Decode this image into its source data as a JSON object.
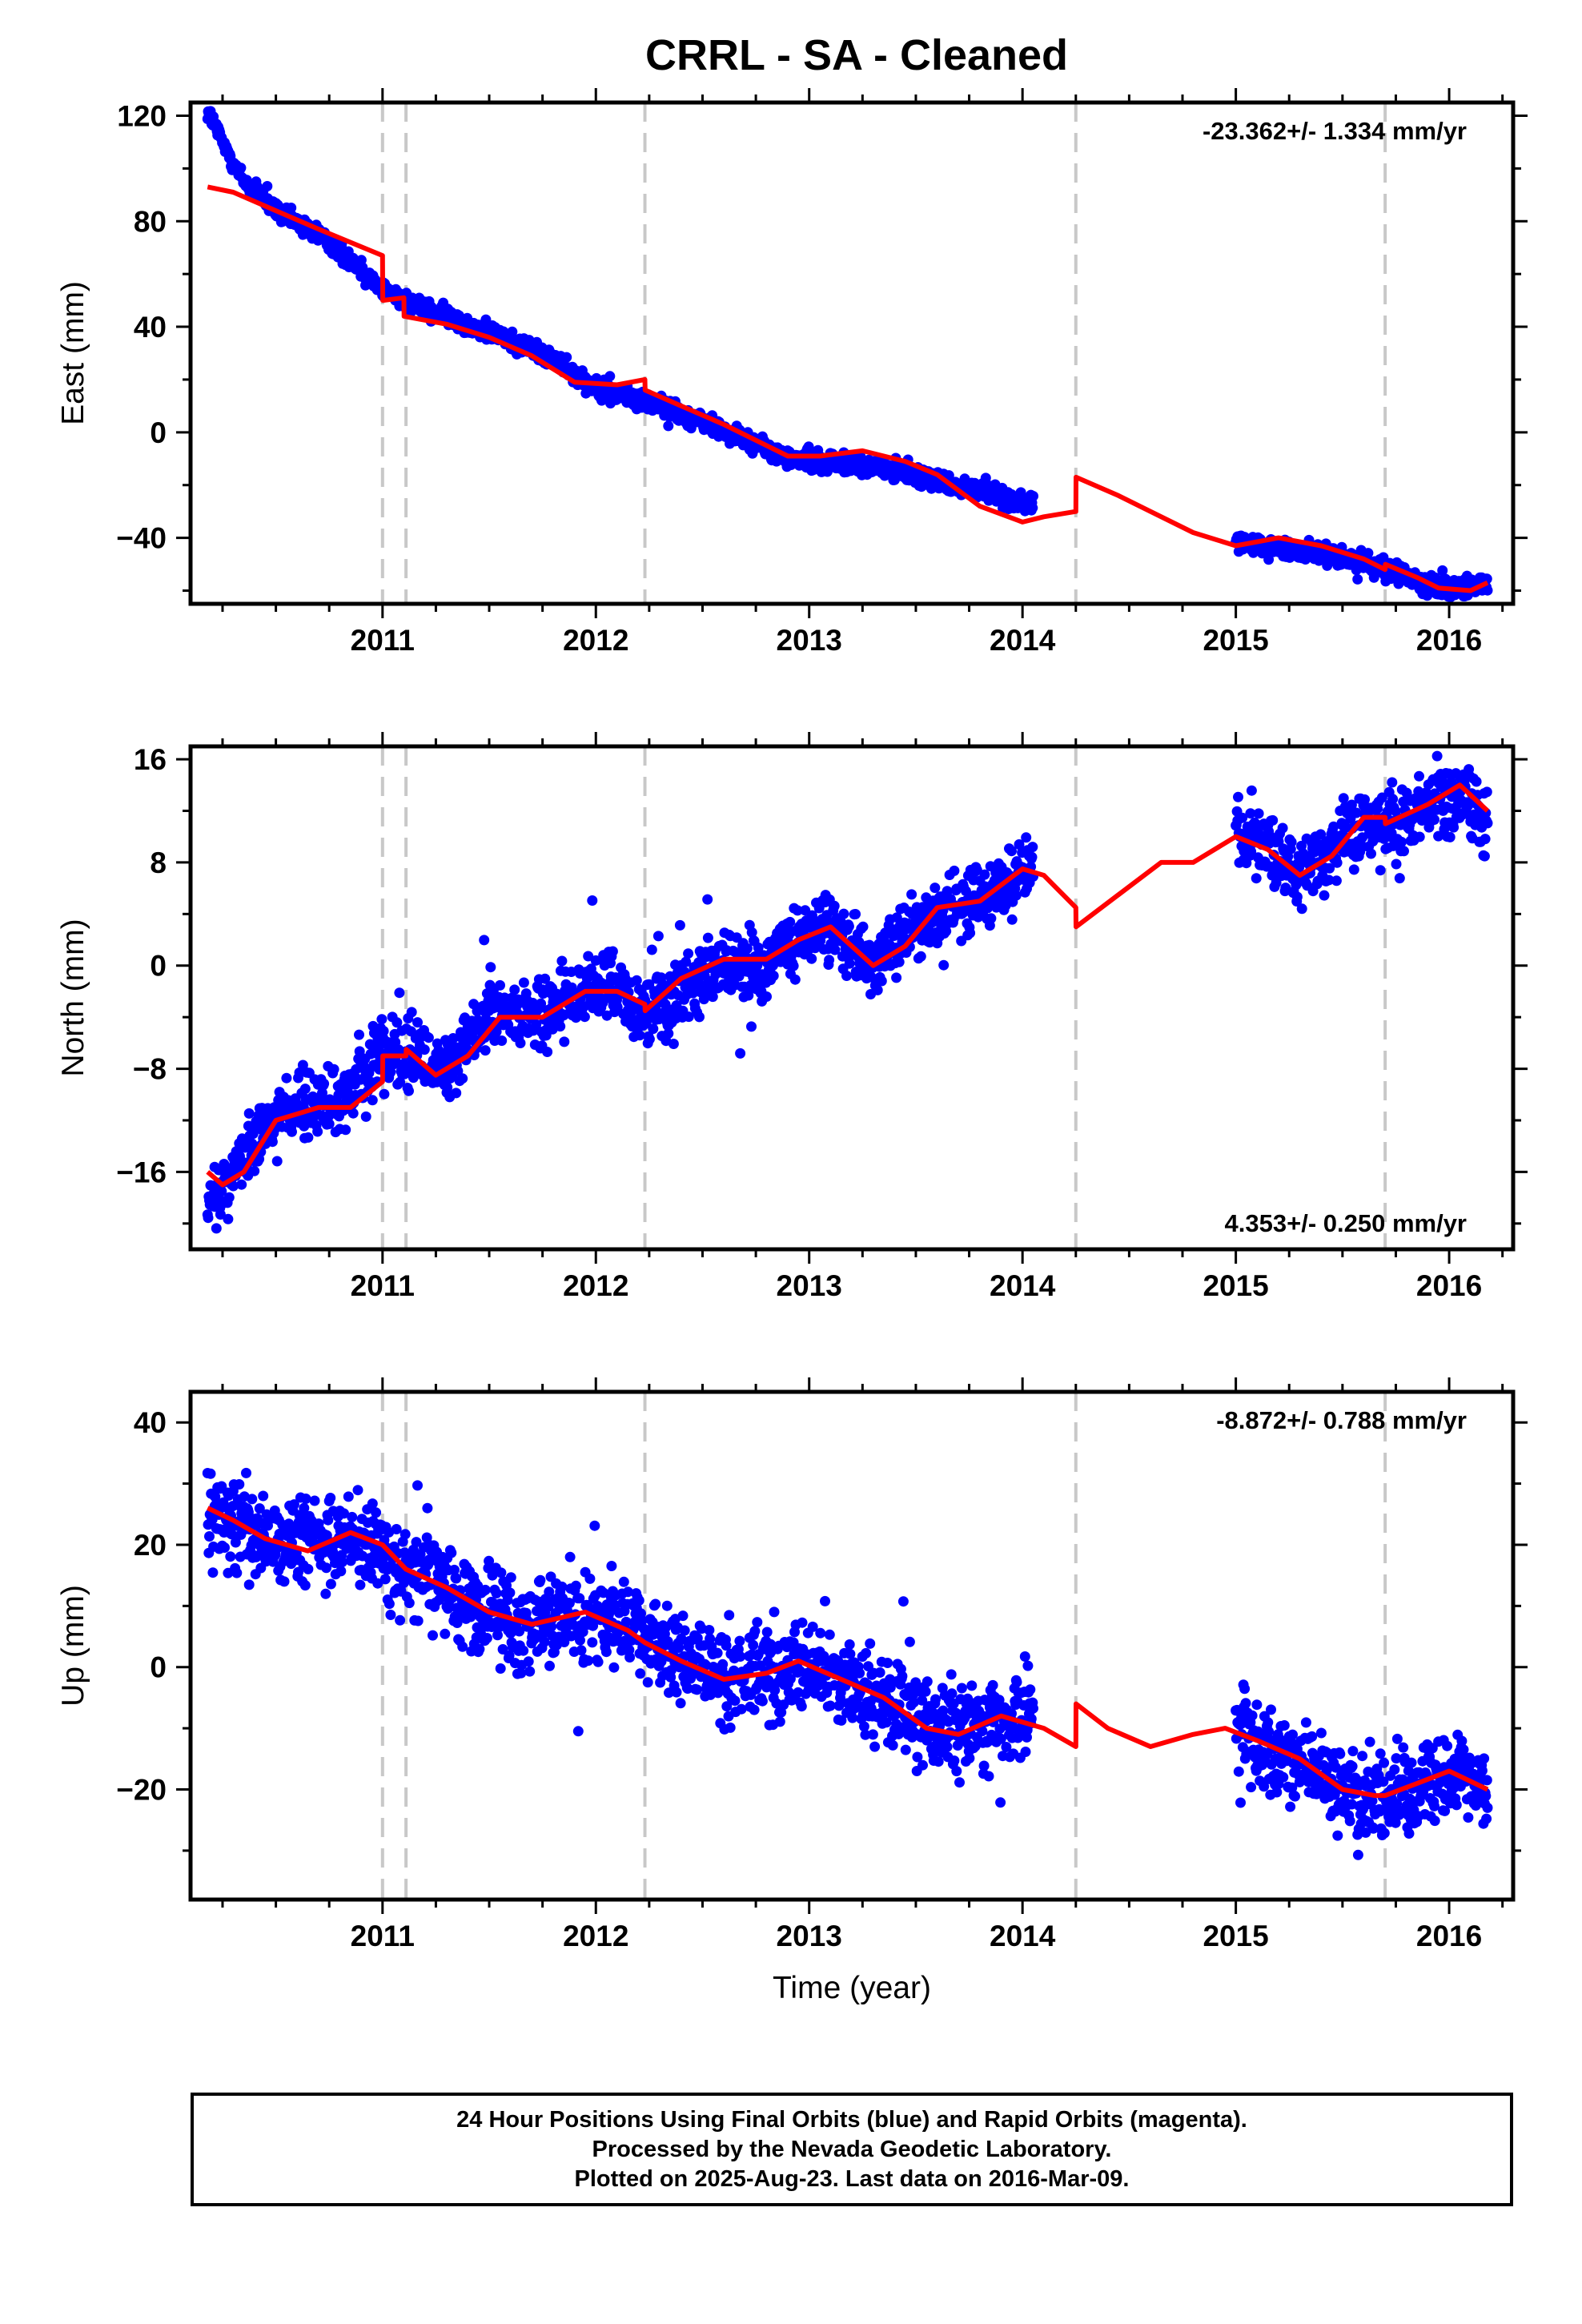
{
  "title": "CRRL  - SA - Cleaned",
  "colors": {
    "data_points": "#0000ff",
    "model_line": "#ff0000",
    "offset_lines": "#c8c8c8",
    "axes": "#000000"
  },
  "xlabel": "Time (year)",
  "footer": {
    "line1": "24 Hour Positions Using Final Orbits (blue) and Rapid Orbits (magenta).",
    "line2": "Processed by the Nevada Geodetic Laboratory.",
    "line3": "Plotted on 2025-Aug-23. Last data on 2016-Mar-09."
  },
  "chart_data": [
    {
      "type": "scatter",
      "panel": "east",
      "ylabel": "East (mm)",
      "rate": "-23.362+/- 1.334 mm/yr",
      "rate_position": "top-right",
      "xlim": [
        2010.1,
        2016.3
      ],
      "ylim": [
        -65,
        125
      ],
      "xticks": [
        2011,
        2012,
        2013,
        2014,
        2015,
        2016
      ],
      "yticks": [
        120,
        80,
        40,
        0,
        -40
      ],
      "offset_lines_x": [
        2011.0,
        2011.11,
        2012.23,
        2014.25,
        2015.7
      ],
      "data_segments": [
        {
          "x": [
            2010.18,
            2010.25,
            2010.35,
            2010.5,
            2010.7,
            2010.9,
            2011.0,
            2011.2,
            2011.5,
            2011.8,
            2012.0,
            2012.3,
            2012.6,
            2012.9,
            2013.2,
            2013.5,
            2013.8,
            2014.05
          ],
          "y": [
            122,
            110,
            95,
            84,
            75,
            62,
            54,
            47,
            38,
            28,
            17,
            10,
            1,
            -10,
            -12,
            -16,
            -22,
            -28
          ],
          "spread": 2.5
        },
        {
          "x": [
            2015.0,
            2015.2,
            2015.4,
            2015.6,
            2015.75,
            2015.9,
            2016.1,
            2016.18
          ],
          "y": [
            -42,
            -44,
            -46,
            -49,
            -53,
            -58,
            -59,
            -58
          ],
          "spread": 2.5
        }
      ],
      "model": {
        "x": [
          2010.18,
          2010.3,
          2010.5,
          2010.7,
          2010.85,
          2011.0,
          2011.001,
          2011.1,
          2011.101,
          2011.3,
          2011.5,
          2011.7,
          2011.9,
          2012.1,
          2012.23,
          2012.231,
          2012.4,
          2012.6,
          2012.8,
          2012.9,
          2013.05,
          2013.25,
          2013.45,
          2013.6,
          2013.8,
          2014.0,
          2014.1,
          2014.25,
          2014.251,
          2014.45,
          2014.6,
          2014.8,
          2015.0,
          2015.2,
          2015.4,
          2015.6,
          2015.7,
          2015.701,
          2015.85,
          2015.95,
          2016.1,
          2016.18
        ],
        "y": [
          93,
          91,
          84,
          77,
          72,
          67,
          50,
          51,
          44,
          41,
          36,
          29,
          19,
          18,
          20,
          16,
          10,
          3,
          -5,
          -9,
          -9,
          -7,
          -11,
          -16,
          -28,
          -34,
          -32,
          -30,
          -17,
          -24,
          -30,
          -38,
          -43,
          -40,
          -43,
          -48,
          -52,
          -50,
          -55,
          -59,
          -60,
          -57
        ]
      }
    },
    {
      "type": "scatter",
      "panel": "north",
      "ylabel": "North (mm)",
      "rate": "4.353+/- 0.250 mm/yr",
      "rate_position": "bottom-right",
      "xlim": [
        2010.1,
        2016.3
      ],
      "ylim": [
        -22,
        17
      ],
      "xticks": [
        2011,
        2012,
        2013,
        2014,
        2015,
        2016
      ],
      "yticks": [
        16,
        8,
        0,
        -8,
        -16
      ],
      "offset_lines_x": [
        2011.0,
        2011.11,
        2012.23,
        2014.25,
        2015.7
      ],
      "data_segments": [
        {
          "x": [
            2010.18,
            2010.3,
            2010.4,
            2010.55,
            2010.7,
            2010.85,
            2011.0,
            2011.15,
            2011.3,
            2011.5,
            2011.7,
            2011.9,
            2012.05,
            2012.25,
            2012.4,
            2012.6,
            2012.8,
            2012.95,
            2013.1,
            2013.3,
            2013.45,
            2013.6,
            2013.8,
            2014.05
          ],
          "y": [
            -19,
            -16,
            -13,
            -11,
            -11,
            -10,
            -7,
            -7,
            -8,
            -4,
            -4,
            -3,
            -1,
            -4,
            -2,
            0,
            0,
            2,
            3,
            0,
            3,
            4,
            5,
            8
          ],
          "spread": 1.8
        },
        {
          "x": [
            2015.0,
            2015.15,
            2015.3,
            2015.45,
            2015.6,
            2015.75,
            2015.9,
            2016.05,
            2016.18
          ],
          "y": [
            10,
            9,
            7,
            9,
            11,
            11,
            13,
            13,
            11
          ],
          "spread": 1.8
        }
      ],
      "model": {
        "x": [
          2010.18,
          2010.25,
          2010.35,
          2010.5,
          2010.7,
          2010.85,
          2011.0,
          2011.001,
          2011.11,
          2011.111,
          2011.25,
          2011.4,
          2011.55,
          2011.75,
          2011.95,
          2012.1,
          2012.23,
          2012.231,
          2012.4,
          2012.6,
          2012.8,
          2012.95,
          2013.1,
          2013.3,
          2013.45,
          2013.6,
          2013.8,
          2014.0,
          2014.1,
          2014.25,
          2014.251,
          2014.45,
          2014.65,
          2014.8,
          2015.0,
          2015.15,
          2015.3,
          2015.45,
          2015.6,
          2015.7,
          2015.701,
          2015.9,
          2016.05,
          2016.18
        ],
        "y": [
          -16,
          -17,
          -16,
          -12,
          -11,
          -11,
          -9,
          -7,
          -7,
          -6.5,
          -8.5,
          -7,
          -4,
          -4,
          -2,
          -2,
          -3,
          -3.5,
          -1,
          0.5,
          0.5,
          2,
          3,
          0,
          1.5,
          4.5,
          5,
          7.5,
          7,
          4.5,
          3,
          5.5,
          8,
          8,
          10,
          9,
          7,
          8.5,
          11.5,
          11.5,
          11,
          12.5,
          14,
          12
        ]
      }
    },
    {
      "type": "scatter",
      "panel": "up",
      "ylabel": "Up (mm)",
      "rate": "-8.872+/- 0.788 mm/yr",
      "rate_position": "top-right",
      "xlim": [
        2010.1,
        2016.3
      ],
      "ylim": [
        -38,
        45
      ],
      "xticks": [
        2011,
        2012,
        2013,
        2014,
        2015,
        2016
      ],
      "yticks": [
        40,
        20,
        0,
        -20
      ],
      "offset_lines_x": [
        2011.0,
        2011.11,
        2012.23,
        2014.25,
        2015.7
      ],
      "data_segments": [
        {
          "x": [
            2010.18,
            2010.3,
            2010.5,
            2010.7,
            2010.9,
            2011.05,
            2011.25,
            2011.45,
            2011.65,
            2011.85,
            2012.05,
            2012.25,
            2012.45,
            2012.65,
            2012.85,
            2013.0,
            2013.2,
            2013.4,
            2013.6,
            2013.8,
            2014.05
          ],
          "y": [
            27,
            24,
            20,
            20,
            21,
            17,
            14,
            10,
            7,
            8,
            8,
            4,
            1,
            -2,
            0,
            0,
            -3,
            -6,
            -10,
            -10,
            -7
          ],
          "spread": 5
        },
        {
          "x": [
            2015.0,
            2015.2,
            2015.4,
            2015.6,
            2015.75,
            2015.9,
            2016.05,
            2016.18
          ],
          "y": [
            -11,
            -15,
            -18,
            -22,
            -21,
            -18,
            -18,
            -20
          ],
          "spread": 5
        }
      ],
      "model": {
        "x": [
          2010.18,
          2010.3,
          2010.45,
          2010.65,
          2010.85,
          2011.0,
          2011.11,
          2011.3,
          2011.5,
          2011.7,
          2011.95,
          2012.15,
          2012.23,
          2012.4,
          2012.6,
          2012.8,
          2012.95,
          2013.15,
          2013.35,
          2013.55,
          2013.7,
          2013.9,
          2014.1,
          2014.25,
          2014.251,
          2014.4,
          2014.6,
          2014.8,
          2014.95,
          2015.1,
          2015.3,
          2015.5,
          2015.65,
          2015.7,
          2015.85,
          2016.0,
          2016.18
        ],
        "y": [
          26,
          24,
          21,
          19,
          22,
          20,
          16,
          13,
          9,
          7,
          9,
          6,
          4,
          1,
          -2,
          -1,
          1,
          -2,
          -5,
          -10,
          -11,
          -8,
          -10,
          -13,
          -6,
          -10,
          -13,
          -11,
          -10,
          -12,
          -15,
          -20,
          -21,
          -21,
          -19,
          -17,
          -20
        ]
      }
    }
  ]
}
